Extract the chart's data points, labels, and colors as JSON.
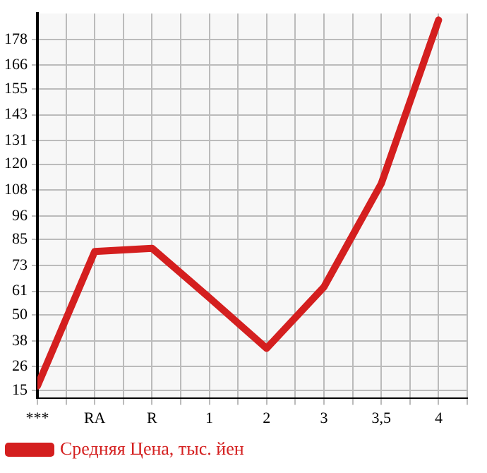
{
  "chart_data": {
    "type": "line",
    "categories": [
      "***",
      "RA",
      "R",
      "1",
      "2",
      "3",
      "3,5",
      "4"
    ],
    "series": [
      {
        "name": "Средняя Цена, тыс. йен",
        "color": "#d41f1f",
        "values": [
          17,
          79.5,
          81,
          58,
          34.5,
          63,
          111,
          187
        ]
      }
    ],
    "ylim": [
      11.5,
      190
    ],
    "yticks": [
      15,
      26,
      38,
      50,
      61,
      73,
      85,
      96,
      108,
      120,
      131,
      143,
      155,
      166,
      178
    ],
    "grid": true,
    "legend": "bottom left",
    "marker": "none",
    "line_style": "solid"
  }
}
